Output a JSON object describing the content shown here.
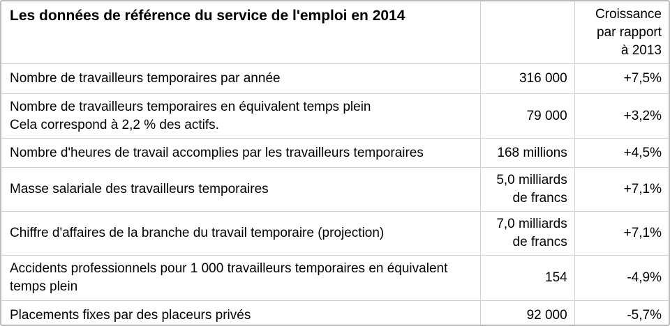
{
  "table": {
    "header": {
      "title": "Les données de référence du service de l'emploi en 2014",
      "growth": "Croissance\npar rapport\nà 2013"
    },
    "rows": [
      {
        "label": "Nombre de travailleurs temporaires par année",
        "value": "316 000",
        "growth": "+7,5%"
      },
      {
        "label": "Nombre de travailleurs temporaires en équivalent temps plein\nCela correspond à 2,2 % des actifs.",
        "value": "79 000",
        "growth": "+3,2%"
      },
      {
        "label": "Nombre d'heures de travail accomplies par les travailleurs temporaires",
        "value": "168 millions",
        "growth": "+4,5%"
      },
      {
        "label": "Masse salariale des travailleurs temporaires",
        "value": "5,0 milliards\nde francs",
        "growth": "+7,1%"
      },
      {
        "label": "Chiffre d'affaires de la branche du travail temporaire (projection)",
        "value": "7,0 milliards\nde francs",
        "growth": "+7,1%"
      },
      {
        "label": "Accidents professionnels pour 1 000 travailleurs temporaires en équivalent temps plein",
        "value": "154",
        "growth": "-4,9%"
      },
      {
        "label": "Placements fixes par des placeurs privés",
        "value": "92 000",
        "growth": "-5,7%"
      }
    ]
  },
  "chart_data": {
    "type": "table",
    "title": "Les données de référence du service de l'emploi en 2014",
    "columns": [
      "Les données de référence du service de l'emploi en 2014",
      "",
      "Croissance par rapport à 2013"
    ],
    "rows": [
      [
        "Nombre de travailleurs temporaires par année",
        "316 000",
        "+7,5%"
      ],
      [
        "Nombre de travailleurs temporaires en équivalent temps plein Cela correspond à 2,2 % des actifs.",
        "79 000",
        "+3,2%"
      ],
      [
        "Nombre d'heures de travail accomplies par les travailleurs temporaires",
        "168 millions",
        "+4,5%"
      ],
      [
        "Masse salariale des travailleurs temporaires",
        "5,0 milliards de francs",
        "+7,1%"
      ],
      [
        "Chiffre d'affaires de la branche du travail temporaire (projection)",
        "7,0 milliards de francs",
        "+7,1%"
      ],
      [
        "Accidents professionnels pour 1 000 travailleurs temporaires en équivalent temps plein",
        "154",
        "-4,9%"
      ],
      [
        "Placements fixes par des placeurs privés",
        "92 000",
        "-5,7%"
      ]
    ],
    "layout": {
      "grid": "on",
      "value_alignment": "right",
      "label_alignment": "left"
    }
  }
}
